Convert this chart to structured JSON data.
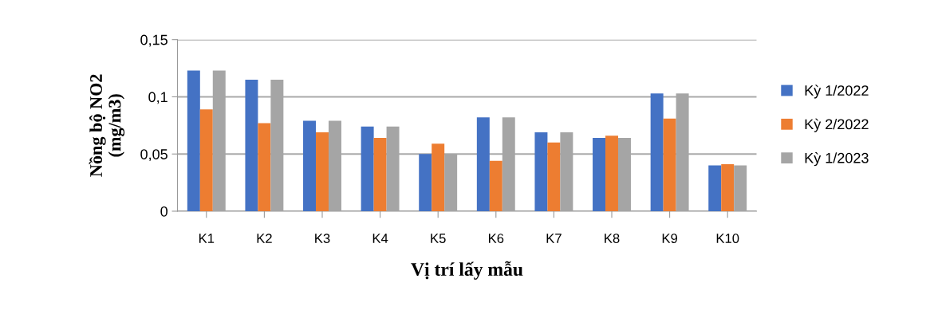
{
  "chart_data": {
    "type": "bar",
    "xlabel": "Vị trí lấy mẫu",
    "ylabel": "Nồng bộ NO2\n(mg/m3)",
    "categories": [
      "K1",
      "K2",
      "K3",
      "K4",
      "K5",
      "K6",
      "K7",
      "K8",
      "K9",
      "K10"
    ],
    "series": [
      {
        "name": "Kỳ 1/2022",
        "color": "#4472c4",
        "values": [
          0.123,
          0.115,
          0.079,
          0.074,
          0.05,
          0.082,
          0.069,
          0.064,
          0.103,
          0.04
        ]
      },
      {
        "name": "Kỳ 2/2022",
        "color": "#ed7d31",
        "values": [
          0.089,
          0.077,
          0.069,
          0.064,
          0.059,
          0.044,
          0.06,
          0.066,
          0.081,
          0.041
        ]
      },
      {
        "name": "Kỳ 1/2023",
        "color": "#a5a5a5",
        "values": [
          0.123,
          0.115,
          0.079,
          0.074,
          0.05,
          0.082,
          0.069,
          0.064,
          0.103,
          0.04
        ]
      }
    ],
    "ylim": [
      0,
      0.15
    ],
    "yticks": [
      0,
      {
        "value": 0.05,
        "label": "0,05"
      },
      {
        "value": 0.1,
        "label": "0,1"
      },
      {
        "value": 0.15,
        "label": "0,15"
      }
    ],
    "grid": "y",
    "legend": "right"
  }
}
